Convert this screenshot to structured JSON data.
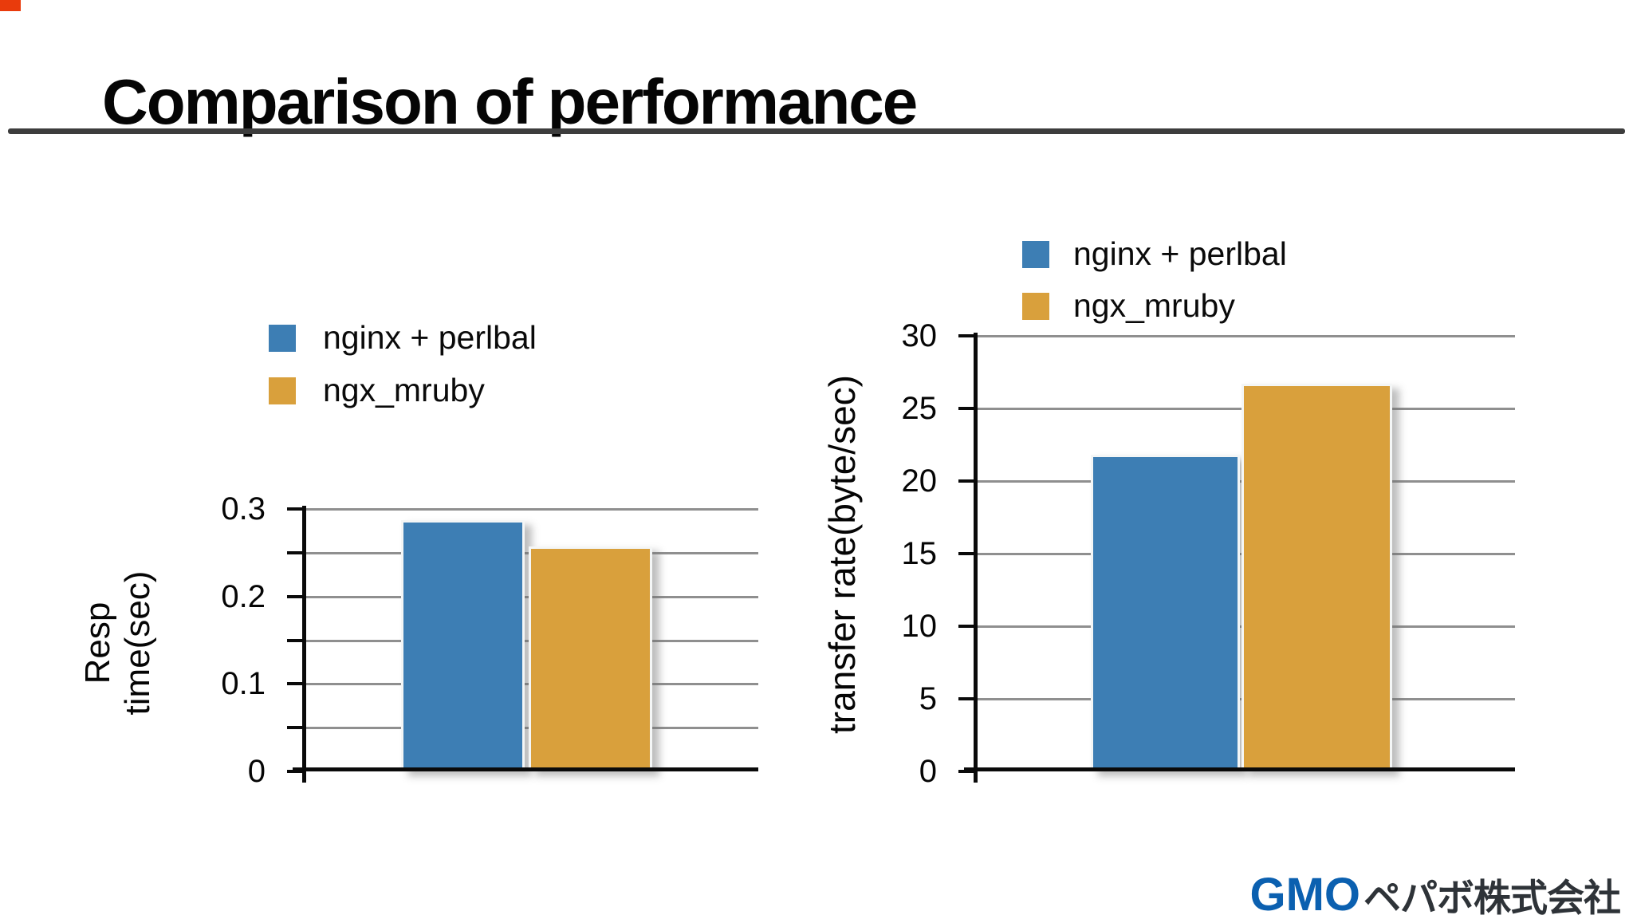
{
  "slide": {
    "title": "Comparison of performance",
    "logo": {
      "gmo": "GMO",
      "company": "ペパボ株式会社"
    }
  },
  "colors": {
    "bar_blue": "#3d7eb4",
    "bar_orange": "#d9a03c",
    "gridline_gray": "#8f8f8f",
    "axis_black": "#0a0a0a",
    "rule_gray": "#3d3d3d",
    "logo_blue": "#0b60b0",
    "logo_dark": "#2e3338",
    "corner_red": "#e93b0c"
  },
  "chart_data": [
    {
      "type": "bar",
      "title": "",
      "xlabel": "",
      "ylabel": "Resp time(sec)",
      "ylabel_lines": [
        "Resp",
        "time(sec)"
      ],
      "ylim": [
        0,
        0.3
      ],
      "grid_step": 0.05,
      "grid": true,
      "legend_position": "top",
      "categories": [
        ""
      ],
      "tick_labels": [
        {
          "value": 0.3,
          "label": "0.3"
        },
        {
          "value": 0.2,
          "label": "0.2"
        },
        {
          "value": 0.1,
          "label": "0.1"
        },
        {
          "value": 0,
          "label": "0"
        }
      ],
      "series": [
        {
          "name": "nginx + perlbal",
          "values": [
            0.287
          ],
          "color": "#3d7eb4"
        },
        {
          "name": "ngx_mruby",
          "values": [
            0.257
          ],
          "color": "#d9a03c"
        }
      ]
    },
    {
      "type": "bar",
      "title": "",
      "xlabel": "",
      "ylabel": "transfer rate(byte/sec)",
      "ylabel_lines": [
        "transfer rate(byte/sec)"
      ],
      "ylim": [
        0,
        30
      ],
      "grid_step": 5,
      "grid": true,
      "legend_position": "top",
      "categories": [
        ""
      ],
      "tick_labels": [
        {
          "value": 30,
          "label": "30"
        },
        {
          "value": 25,
          "label": "25"
        },
        {
          "value": 20,
          "label": "20"
        },
        {
          "value": 15,
          "label": "15"
        },
        {
          "value": 10,
          "label": "10"
        },
        {
          "value": 5,
          "label": "5"
        },
        {
          "value": 0,
          "label": "0"
        }
      ],
      "series": [
        {
          "name": "nginx + perlbal",
          "values": [
            21.8
          ],
          "color": "#3d7eb4"
        },
        {
          "name": "ngx_mruby",
          "values": [
            26.7
          ],
          "color": "#d9a03c"
        }
      ]
    }
  ]
}
